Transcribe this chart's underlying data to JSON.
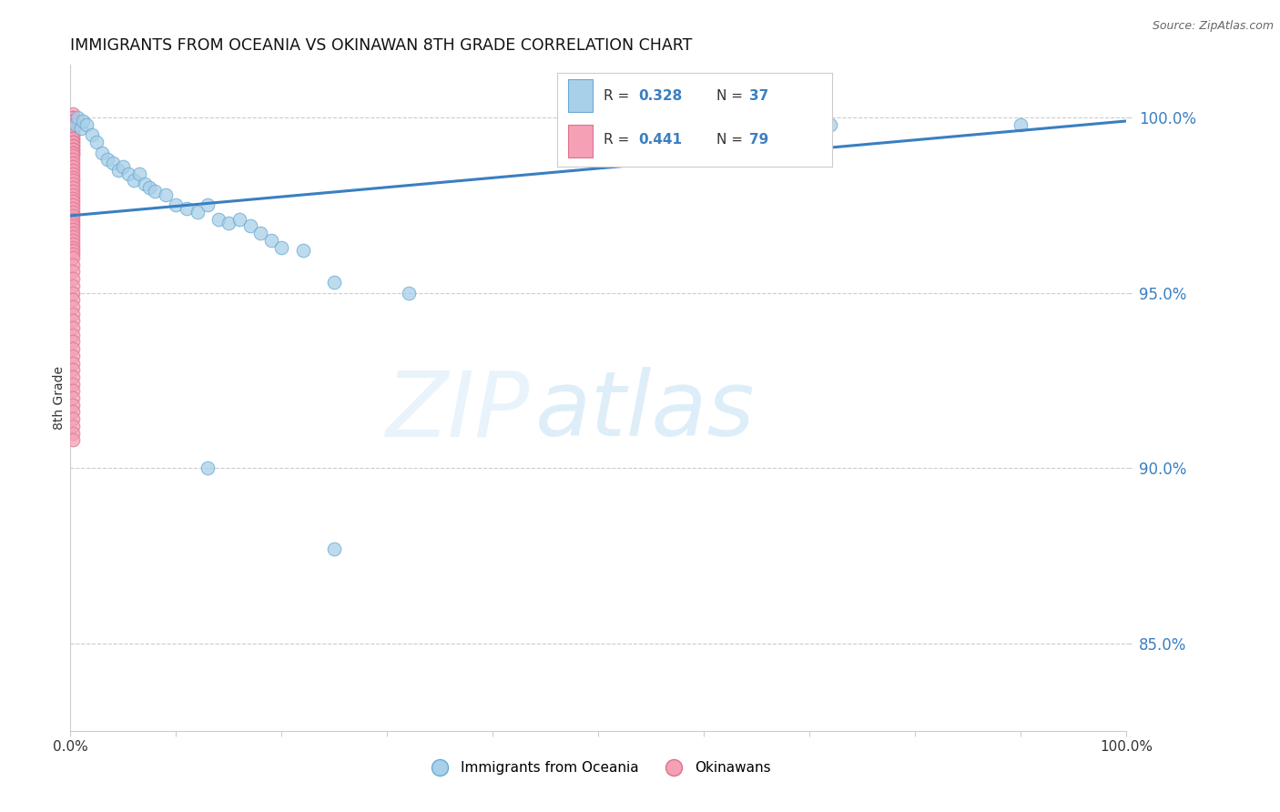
{
  "title": "IMMIGRANTS FROM OCEANIA VS OKINAWAN 8TH GRADE CORRELATION CHART",
  "source": "Source: ZipAtlas.com",
  "ylabel": "8th Grade",
  "yticks_labels": [
    "85.0%",
    "90.0%",
    "95.0%",
    "100.0%"
  ],
  "ytick_vals": [
    0.85,
    0.9,
    0.95,
    1.0
  ],
  "xlim": [
    0.0,
    1.0
  ],
  "ylim": [
    0.825,
    1.015
  ],
  "legend_r_blue": "0.328",
  "legend_n_blue": "37",
  "legend_r_pink": "0.441",
  "legend_n_pink": "79",
  "color_blue": "#a8d0e8",
  "color_pink": "#f4a0b5",
  "trendline_color": "#3a7fc1",
  "trendline_x": [
    0.0,
    1.0
  ],
  "trendline_y": [
    0.972,
    0.999
  ],
  "watermark_zip": "ZIP",
  "watermark_atlas": "atlas",
  "background_color": "#ffffff",
  "grid_color": "#cccccc",
  "blue_points_x": [
    0.005,
    0.007,
    0.01,
    0.012,
    0.015,
    0.02,
    0.025,
    0.03,
    0.035,
    0.04,
    0.045,
    0.05,
    0.055,
    0.06,
    0.065,
    0.07,
    0.075,
    0.08,
    0.09,
    0.1,
    0.11,
    0.12,
    0.13,
    0.14,
    0.15,
    0.16,
    0.17,
    0.18,
    0.19,
    0.2,
    0.22,
    0.25,
    0.32,
    0.72,
    0.9,
    0.13,
    0.25
  ],
  "blue_points_y": [
    0.998,
    1.0,
    0.997,
    0.999,
    0.998,
    0.995,
    0.993,
    0.99,
    0.988,
    0.987,
    0.985,
    0.986,
    0.984,
    0.982,
    0.984,
    0.981,
    0.98,
    0.979,
    0.978,
    0.975,
    0.974,
    0.973,
    0.975,
    0.971,
    0.97,
    0.971,
    0.969,
    0.967,
    0.965,
    0.963,
    0.962,
    0.953,
    0.95,
    0.998,
    0.998,
    0.9,
    0.877
  ],
  "pink_points_x": [
    0.002,
    0.002,
    0.002,
    0.002,
    0.002,
    0.002,
    0.002,
    0.002,
    0.002,
    0.002,
    0.002,
    0.002,
    0.002,
    0.002,
    0.002,
    0.002,
    0.002,
    0.002,
    0.002,
    0.002,
    0.002,
    0.002,
    0.002,
    0.002,
    0.002,
    0.002,
    0.002,
    0.002,
    0.002,
    0.002,
    0.002,
    0.002,
    0.002,
    0.002,
    0.002,
    0.002,
    0.002,
    0.002,
    0.002,
    0.002,
    0.002,
    0.002,
    0.002,
    0.002,
    0.002,
    0.002,
    0.002,
    0.002,
    0.002,
    0.002,
    0.002,
    0.002,
    0.002,
    0.002,
    0.002,
    0.002,
    0.002,
    0.002,
    0.002,
    0.002,
    0.002,
    0.002,
    0.002,
    0.002,
    0.002,
    0.002,
    0.002,
    0.002,
    0.002,
    0.002,
    0.002,
    0.002,
    0.002,
    0.002,
    0.002,
    0.002,
    0.002,
    0.002,
    0.002
  ],
  "pink_points_y": [
    1.001,
    1.0,
    1.0,
    0.999,
    0.999,
    0.998,
    0.998,
    0.997,
    0.997,
    0.996,
    0.996,
    0.995,
    0.995,
    0.994,
    0.994,
    0.993,
    0.993,
    0.992,
    0.992,
    0.991,
    0.991,
    0.99,
    0.99,
    0.989,
    0.988,
    0.987,
    0.986,
    0.985,
    0.984,
    0.983,
    0.982,
    0.981,
    0.98,
    0.979,
    0.978,
    0.977,
    0.976,
    0.975,
    0.974,
    0.973,
    0.972,
    0.971,
    0.97,
    0.969,
    0.968,
    0.967,
    0.966,
    0.965,
    0.964,
    0.963,
    0.962,
    0.961,
    0.96,
    0.958,
    0.956,
    0.954,
    0.952,
    0.95,
    0.948,
    0.946,
    0.944,
    0.942,
    0.94,
    0.938,
    0.936,
    0.934,
    0.932,
    0.93,
    0.928,
    0.926,
    0.924,
    0.922,
    0.92,
    0.918,
    0.916,
    0.914,
    0.912,
    0.91,
    0.908
  ]
}
